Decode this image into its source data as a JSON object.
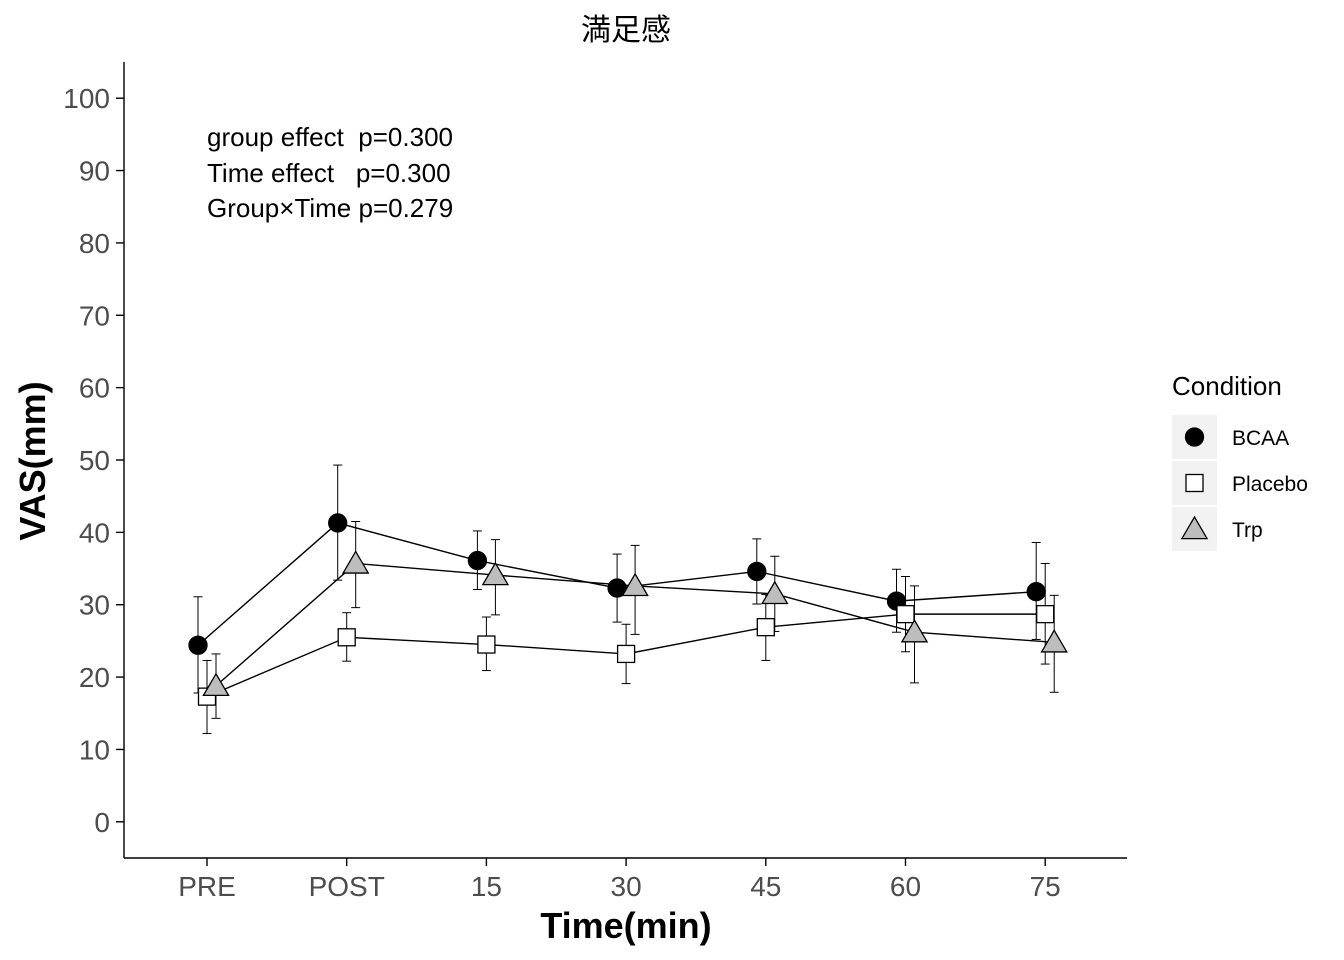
{
  "chart_data": {
    "type": "line",
    "title": "満足感",
    "xlabel": "Time(min)",
    "ylabel": "VAS(mm)",
    "categories": [
      "PRE",
      "POST",
      "15",
      "30",
      "45",
      "60",
      "75"
    ],
    "yticks": [
      0,
      10,
      20,
      30,
      40,
      50,
      60,
      70,
      80,
      90,
      100
    ],
    "ylim": [
      -5,
      105
    ],
    "grid": false,
    "annotations": [
      "group effect  p=0.300",
      "Time effect   p=0.300",
      "Group×Time p=0.279"
    ],
    "legend": {
      "title": "Condition",
      "position": "right"
    },
    "series": [
      {
        "name": "BCAA",
        "marker": "circle",
        "fill": "#000000",
        "values": [
          24.4,
          41.3,
          36.1,
          32.3,
          34.6,
          30.5,
          31.8
        ],
        "err_low": [
          17.8,
          33.4,
          32.1,
          27.6,
          30.1,
          26.2,
          25.2
        ],
        "err_high": [
          31.1,
          49.3,
          40.2,
          37.0,
          39.1,
          34.9,
          38.6
        ]
      },
      {
        "name": "Placebo",
        "marker": "square",
        "fill": "#ffffff",
        "values": [
          17.3,
          25.5,
          24.5,
          23.2,
          26.9,
          28.7,
          28.7
        ],
        "err_low": [
          12.2,
          22.2,
          20.9,
          19.1,
          22.3,
          23.5,
          21.8
        ],
        "err_high": [
          22.3,
          28.9,
          28.3,
          27.3,
          31.4,
          33.9,
          35.7
        ]
      },
      {
        "name": "Trp",
        "marker": "triangle",
        "fill": "#bdbdbd",
        "values": [
          18.8,
          35.7,
          34.1,
          32.6,
          31.5,
          26.2,
          24.8
        ],
        "err_low": [
          14.3,
          29.6,
          28.6,
          25.9,
          26.3,
          19.2,
          17.9
        ],
        "err_high": [
          23.2,
          41.5,
          39.0,
          38.2,
          36.7,
          32.6,
          31.3
        ]
      }
    ]
  }
}
